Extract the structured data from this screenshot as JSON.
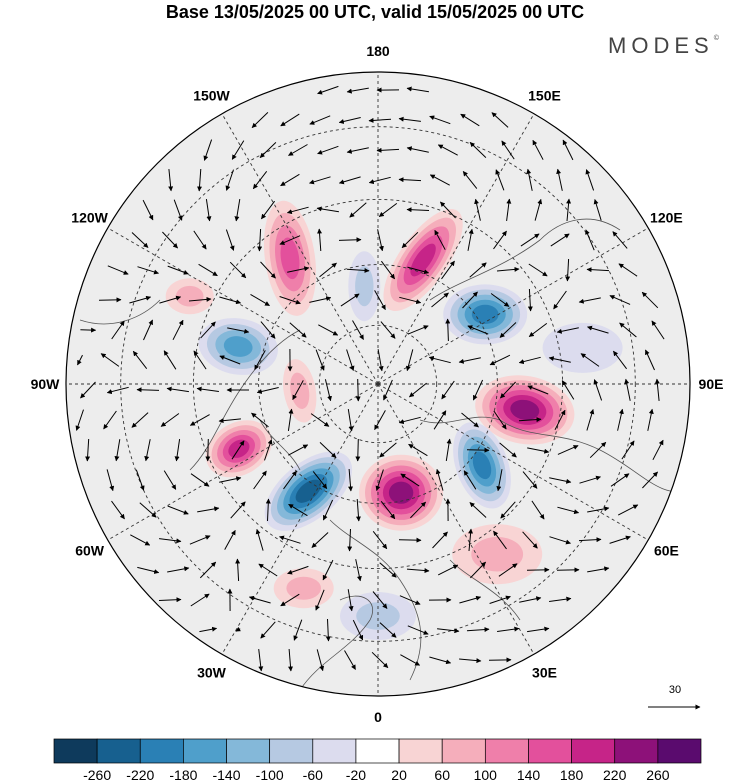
{
  "title": "Base 13/05/2025 00 UTC, valid 15/05/2025 00 UTC",
  "brand": "MODES",
  "brand_mark": "©",
  "map": {
    "projection": "north-polar-stereographic",
    "longitude_labels": [
      {
        "text": "180",
        "lon": 180
      },
      {
        "text": "150E",
        "lon": 150
      },
      {
        "text": "120E",
        "lon": 120
      },
      {
        "text": "90E",
        "lon": 90
      },
      {
        "text": "60E",
        "lon": 60
      },
      {
        "text": "30E",
        "lon": 30
      },
      {
        "text": "0",
        "lon": 0
      },
      {
        "text": "30W",
        "lon": -30
      },
      {
        "text": "60W",
        "lon": -60
      },
      {
        "text": "90W",
        "lon": -90
      },
      {
        "text": "120W",
        "lon": -120
      },
      {
        "text": "150W",
        "lon": -150
      }
    ],
    "vector_reference": {
      "value": "30"
    }
  },
  "colorbar": {
    "ticks": [
      "-260",
      "-220",
      "-180",
      "-140",
      "-100",
      "-60",
      "-20",
      "20",
      "60",
      "100",
      "140",
      "180",
      "220",
      "260"
    ],
    "colors": [
      "#0e3a5c",
      "#17608f",
      "#2a80b5",
      "#4f9fcb",
      "#84b8d9",
      "#b6c9e2",
      "#dcdcee",
      "#ffffff",
      "#f8d4d4",
      "#f5aebb",
      "#ef7faa",
      "#e3509c",
      "#c62488",
      "#8d1179",
      "#5a0b6e"
    ]
  },
  "anomalies": [
    {
      "lon": 160,
      "lat": 57,
      "value": 190,
      "rx": 60,
      "ry": 24,
      "rot": -55
    },
    {
      "lon": 123,
      "lat": 58,
      "value": -180,
      "rx": 42,
      "ry": 30,
      "rot": 0
    },
    {
      "lon": 80,
      "lat": 53,
      "value": 240,
      "rx": 50,
      "ry": 34,
      "rot": 10
    },
    {
      "lon": 52,
      "lat": 57,
      "value": -200,
      "rx": 45,
      "ry": 26,
      "rot": 70
    },
    {
      "lon": 12,
      "lat": 62,
      "value": 240,
      "rx": 42,
      "ry": 38,
      "rot": 0
    },
    {
      "lon": -33,
      "lat": 58,
      "value": -250,
      "rx": 52,
      "ry": 28,
      "rot": -40
    },
    {
      "lon": -65,
      "lat": 52,
      "value": 190,
      "rx": 35,
      "ry": 26,
      "rot": -30
    },
    {
      "lon": -105,
      "lat": 54,
      "value": -170,
      "rx": 40,
      "ry": 28,
      "rot": 10
    },
    {
      "lon": -145,
      "lat": 52,
      "value": 140,
      "rx": 25,
      "ry": 58,
      "rot": -8
    },
    {
      "lon": -172,
      "lat": 65,
      "value": -90,
      "rx": 16,
      "ry": 35,
      "rot": 0
    },
    {
      "lon": -85,
      "lat": 70,
      "value": 80,
      "rx": 16,
      "ry": 32,
      "rot": -10
    },
    {
      "lon": -115,
      "lat": 40,
      "value": 60,
      "rx": 24,
      "ry": 18,
      "rot": 0
    },
    {
      "lon": 35,
      "lat": 40,
      "value": 70,
      "rx": 45,
      "ry": 30,
      "rot": 0
    },
    {
      "lon": 0,
      "lat": 35,
      "value": -80,
      "rx": 38,
      "ry": 24,
      "rot": 0
    },
    {
      "lon": -20,
      "lat": 38,
      "value": 60,
      "rx": 30,
      "ry": 20,
      "rot": 0
    },
    {
      "lon": 100,
      "lat": 40,
      "value": -40,
      "rx": 40,
      "ry": 25,
      "rot": 0
    }
  ]
}
